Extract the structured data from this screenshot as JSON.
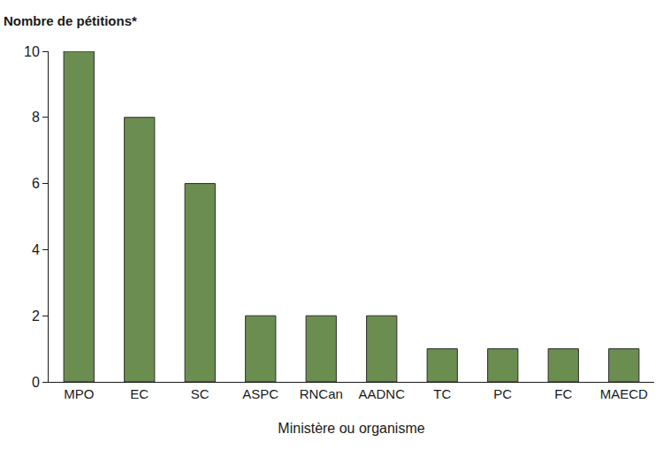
{
  "chart_data": {
    "type": "bar",
    "y_label": "Nombre de pétitions*",
    "x_label": "Ministère ou organisme",
    "categories": [
      "MPO",
      "EC",
      "SC",
      "ASPC",
      "RNCan",
      "AADNC",
      "TC",
      "PC",
      "FC",
      "MAECD"
    ],
    "values": [
      10,
      8,
      6,
      2,
      2,
      2,
      1,
      1,
      1,
      1
    ],
    "color": "#6b8e50",
    "ylim": [
      0,
      10
    ],
    "yticks": [
      0,
      2,
      4,
      6,
      8,
      10
    ],
    "grid": false
  }
}
